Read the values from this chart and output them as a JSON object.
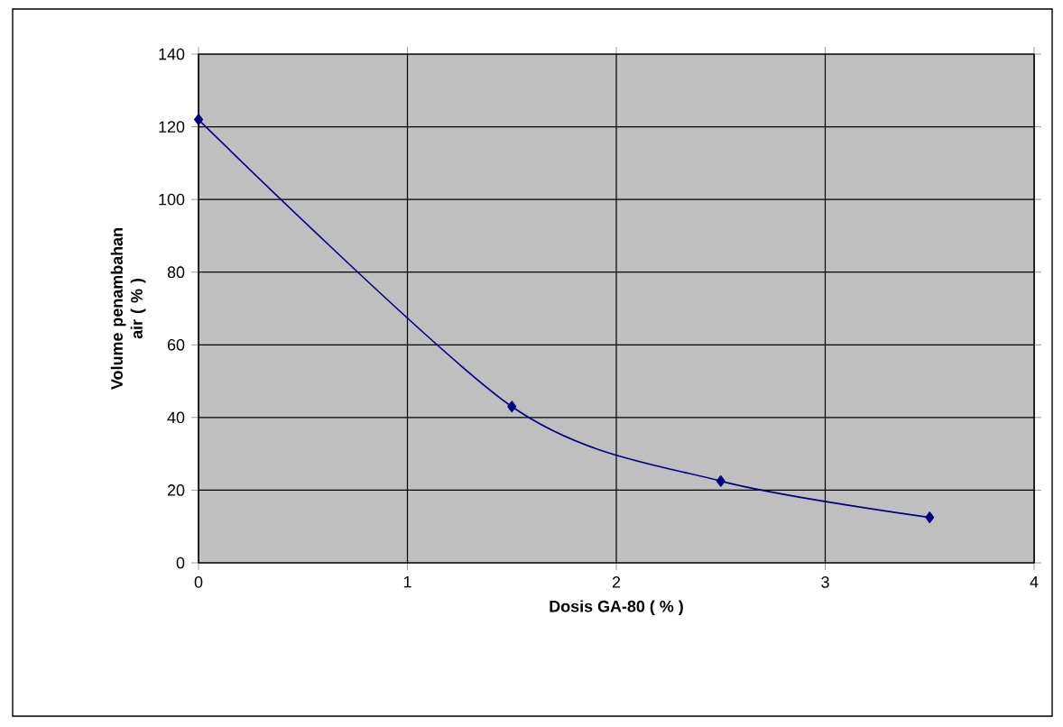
{
  "chart_data": {
    "type": "line",
    "xlabel": "Dosis GA-80 ( % )",
    "ylabel": "Volume penambahan air ( % )",
    "x": [
      0,
      1.5,
      2.5,
      3.5
    ],
    "series": [
      {
        "color": "#000080",
        "values": [
          122,
          43,
          22.5,
          12.5
        ]
      }
    ],
    "xlim": [
      0,
      4
    ],
    "xticks": [
      0,
      1,
      2,
      3,
      4
    ],
    "ylim": [
      0,
      140
    ],
    "yticks": [
      0,
      20,
      40,
      60,
      80,
      100,
      120,
      140
    ],
    "grid": true,
    "marker": "diamond",
    "line_style": "solid"
  }
}
